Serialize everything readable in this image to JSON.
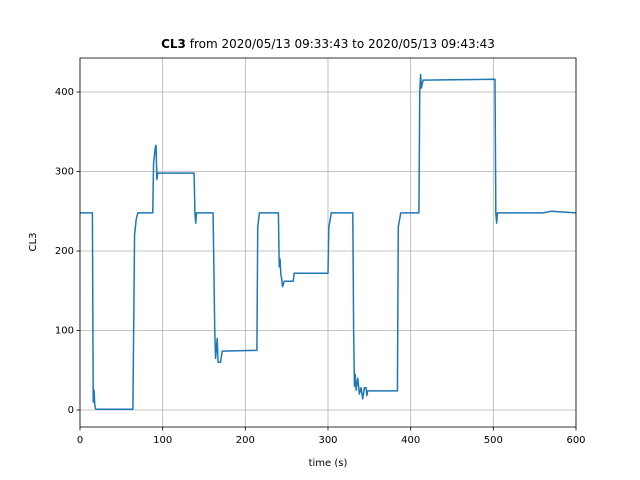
{
  "chart_data": {
    "type": "line",
    "title_bold": "CL3",
    "title": "from 2020/05/13 09:33:43 to 2020/05/13 09:43:43",
    "xlabel": "time (s)",
    "ylabel": "CL3",
    "xlim": [
      0,
      600
    ],
    "ylim": [
      -21.4,
      442.8
    ],
    "xticks": [
      0,
      100,
      200,
      300,
      400,
      500,
      600
    ],
    "yticks": [
      0,
      100,
      200,
      300,
      400
    ],
    "grid": true,
    "series": [
      {
        "color": "#1f77b4",
        "x": [
          0,
          14,
          15,
          16,
          17,
          18,
          19,
          64,
          66,
          68,
          70,
          88,
          89,
          91,
          92,
          93,
          94,
          138,
          139,
          140,
          141,
          161,
          163,
          164,
          166,
          167,
          170,
          172,
          214,
          215,
          217,
          240,
          241,
          242,
          243,
          244,
          245,
          247,
          258,
          259,
          300,
          301,
          304,
          330,
          331,
          332,
          333,
          334,
          336,
          338,
          340,
          342,
          344,
          346,
          347,
          348,
          384,
          385,
          388,
          410,
          411,
          412,
          413,
          415,
          502,
          503,
          504,
          505,
          560,
          570,
          600
        ],
        "values": [
          248,
          248,
          248,
          10,
          25,
          5,
          1,
          1,
          220,
          240,
          248,
          248,
          310,
          330,
          333,
          290,
          298,
          298,
          248,
          235,
          248,
          248,
          100,
          65,
          90,
          60,
          60,
          74,
          75,
          230,
          248,
          248,
          180,
          190,
          170,
          165,
          155,
          162,
          162,
          172,
          172,
          230,
          248,
          248,
          100,
          30,
          45,
          25,
          40,
          20,
          28,
          14,
          28,
          28,
          18,
          24,
          24,
          230,
          248,
          248,
          400,
          422,
          405,
          415,
          416,
          248,
          235,
          248,
          248,
          250,
          248
        ]
      }
    ]
  }
}
